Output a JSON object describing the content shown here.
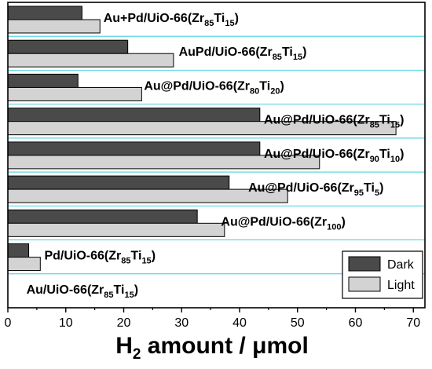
{
  "chart_data": {
    "type": "bar",
    "orientation": "horizontal",
    "xlabel_main": "H",
    "xlabel_sub": "2",
    "xlabel_rest": " amount / μmol",
    "xlim": [
      0,
      72
    ],
    "xticks": [
      0,
      10,
      20,
      30,
      40,
      50,
      60,
      70
    ],
    "grid": "horizontal separators between categories",
    "legend": {
      "position": "bottom-right",
      "entries": [
        "Dark",
        "Light"
      ]
    },
    "series_colors": {
      "Dark": "#4a4a4a",
      "Light": "#d3d3d3"
    },
    "separator_color": "#5ad6e0",
    "categories": [
      {
        "label": [
          [
            "Au+Pd/UiO-66(Zr",
            ""
          ],
          [
            "85",
            "sub"
          ],
          [
            "Ti",
            ""
          ],
          [
            "15",
            "sub"
          ],
          [
            ")",
            ""
          ]
        ],
        "dark": 12.8,
        "light": 15.9,
        "label_x": 16.5
      },
      {
        "label": [
          [
            "AuPd/UiO-66(Zr",
            ""
          ],
          [
            "85",
            "sub"
          ],
          [
            "Ti",
            ""
          ],
          [
            "15",
            "sub"
          ],
          [
            ")",
            ""
          ]
        ],
        "dark": 20.7,
        "light": 28.6,
        "label_x": 29.5
      },
      {
        "label": [
          [
            "Au@Pd/UiO-66(Zr",
            ""
          ],
          [
            "80",
            "sub"
          ],
          [
            "Ti",
            ""
          ],
          [
            "20",
            "sub"
          ],
          [
            ")",
            ""
          ]
        ],
        "dark": 12.1,
        "light": 23.1,
        "label_x": 23.5
      },
      {
        "label": [
          [
            "Au@Pd/UiO-66(Zr",
            ""
          ],
          [
            "85",
            "sub"
          ],
          [
            "Ti",
            ""
          ],
          [
            "15",
            "sub"
          ],
          [
            ")",
            ""
          ]
        ],
        "dark": 43.5,
        "light": 67.0,
        "label_x": 44.2
      },
      {
        "label": [
          [
            "Au@Pd/UiO-66(Zr",
            ""
          ],
          [
            "90",
            "sub"
          ],
          [
            "Ti",
            ""
          ],
          [
            "10",
            "sub"
          ],
          [
            ")",
            ""
          ]
        ],
        "dark": 43.5,
        "light": 53.8,
        "label_x": 44.2
      },
      {
        "label": [
          [
            "Au@Pd/UiO-66(Zr",
            ""
          ],
          [
            "95",
            "sub"
          ],
          [
            "Ti",
            ""
          ],
          [
            "5",
            "sub"
          ],
          [
            ")",
            ""
          ]
        ],
        "dark": 38.2,
        "light": 48.3,
        "label_x": 41.5
      },
      {
        "label": [
          [
            "Au@Pd/UiO-66(Zr",
            ""
          ],
          [
            "100",
            "sub"
          ],
          [
            ")",
            ""
          ]
        ],
        "dark": 32.7,
        "light": 37.4,
        "label_x": 36.8
      },
      {
        "label": [
          [
            "Pd/UiO-66(Zr",
            ""
          ],
          [
            "85",
            "sub"
          ],
          [
            "Ti",
            ""
          ],
          [
            "15",
            "sub"
          ],
          [
            ")",
            ""
          ]
        ],
        "dark": 3.6,
        "light": 5.6,
        "label_x": 6.3
      },
      {
        "label": [
          [
            "Au/UiO-66(Zr",
            ""
          ],
          [
            "85",
            "sub"
          ],
          [
            "Ti",
            ""
          ],
          [
            "15",
            "sub"
          ],
          [
            ")",
            ""
          ]
        ],
        "dark": 0,
        "light": 0,
        "label_x": 3.2
      }
    ]
  }
}
